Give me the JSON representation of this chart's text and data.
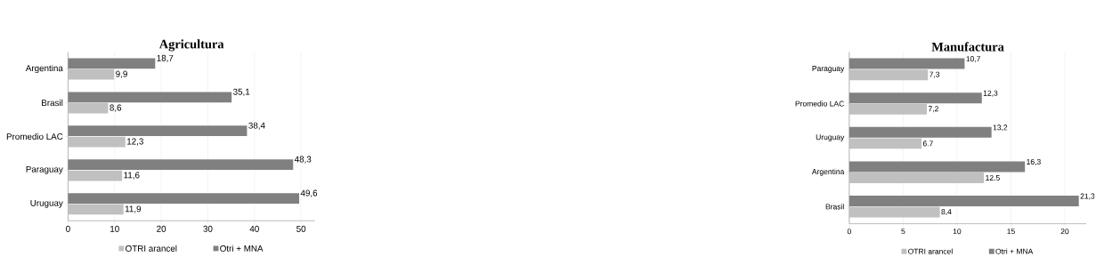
{
  "chart_data": [
    {
      "type": "bar",
      "orientation": "horizontal",
      "title": "Agricultura",
      "categories": [
        "Argentina",
        "Brasil",
        "Promedio LAC",
        "Paraguay",
        "Uruguay"
      ],
      "series": [
        {
          "name": "OTRI arancel",
          "color": "#c0c0c0",
          "values": [
            9.9,
            8.6,
            12.3,
            11.6,
            11.9
          ],
          "value_labels": [
            "9,9",
            "8,6",
            "12,3",
            "11,6",
            "11,9"
          ]
        },
        {
          "name": "Otri + MNA",
          "color": "#808080",
          "values": [
            18.7,
            35.1,
            38.4,
            48.3,
            49.6
          ],
          "value_labels": [
            "18,7",
            "35,1",
            "38,4",
            "48,3",
            "49,6"
          ]
        }
      ],
      "xlim": [
        0,
        53
      ],
      "xticks": [
        0,
        10,
        20,
        30,
        40,
        50
      ],
      "grid": "x",
      "legend": "bottom"
    },
    {
      "type": "bar",
      "orientation": "horizontal",
      "title": "Manufactura",
      "categories": [
        "Paraguay",
        "Promedio LAC",
        "Uruguay",
        "Argentina",
        "Brasil"
      ],
      "series": [
        {
          "name": "OTRI arancel",
          "color": "#c0c0c0",
          "values": [
            7.3,
            7.2,
            6.7,
            12.5,
            8.4
          ],
          "value_labels": [
            "7,3",
            "7,2",
            "6.7",
            "12.5",
            "8,4"
          ]
        },
        {
          "name": "Otri + MNA",
          "color": "#808080",
          "values": [
            10.7,
            12.3,
            13.2,
            16.3,
            21.3
          ],
          "value_labels": [
            "10,7",
            "12,3",
            "13,2",
            "16,3",
            "21,3"
          ]
        }
      ],
      "xlim": [
        0,
        22
      ],
      "xticks": [
        0,
        5,
        10,
        15,
        20
      ],
      "grid": "x",
      "legend": "bottom"
    }
  ]
}
